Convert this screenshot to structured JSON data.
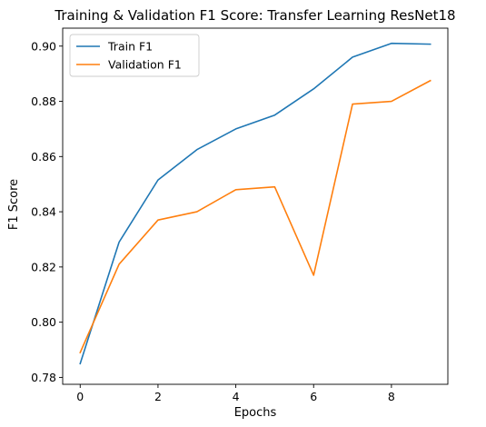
{
  "chart_data": {
    "type": "line",
    "title": "Training & Validation F1 Score: Transfer Learning ResNet18",
    "xlabel": "Epochs",
    "ylabel": "F1 Score",
    "x": [
      0,
      1,
      2,
      3,
      4,
      5,
      6,
      7,
      8,
      9
    ],
    "xlim": [
      -0.45,
      9.45
    ],
    "ylim": [
      0.7775,
      0.9065
    ],
    "xticks": [
      0,
      2,
      4,
      6,
      8
    ],
    "xtick_labels": [
      "0",
      "2",
      "4",
      "6",
      "8"
    ],
    "yticks": [
      0.78,
      0.8,
      0.82,
      0.84,
      0.86,
      0.88,
      0.9
    ],
    "ytick_labels": [
      "0.78",
      "0.80",
      "0.82",
      "0.84",
      "0.86",
      "0.88",
      "0.90"
    ],
    "grid": false,
    "legend_position": "upper-left",
    "series": [
      {
        "name": "Train F1",
        "color": "#1f77b4",
        "values": [
          0.785,
          0.829,
          0.8515,
          0.8625,
          0.87,
          0.875,
          0.8845,
          0.896,
          0.901,
          0.9007
        ]
      },
      {
        "name": "Validation F1",
        "color": "#ff7f0e",
        "values": [
          0.789,
          0.821,
          0.837,
          0.84,
          0.848,
          0.849,
          0.817,
          0.879,
          0.88,
          0.8875
        ]
      }
    ]
  }
}
